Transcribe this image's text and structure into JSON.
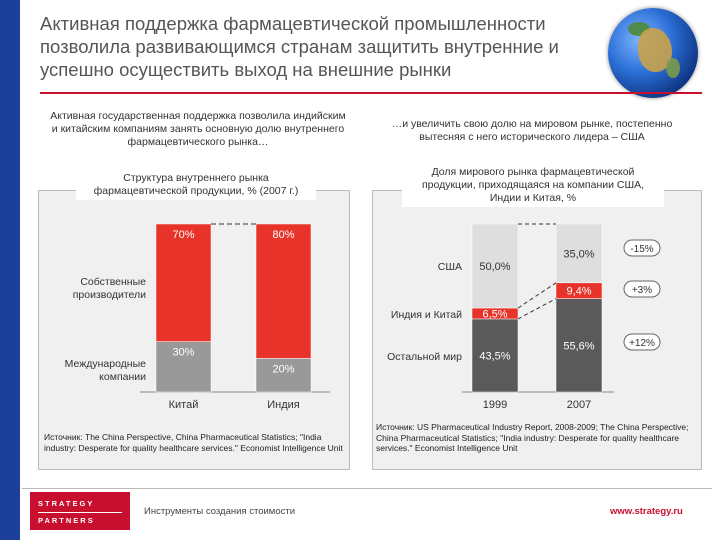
{
  "header": {
    "title": "Активная поддержка фармацевтической промышленности позволила развивающимся странам защитить внутренние и успешно осуществить выход на внешние рынки"
  },
  "left": {
    "subtitle": "Активная государственная поддержка позволила индийским и китайским компаниям занять основную долю внутреннего фармацевтического рынка…",
    "source": "Источник: The China Perspective, China Pharmaceutical Statistics; \"India industry: Desperate for quality healthcare services.\" Economist Intelligence Unit"
  },
  "right": {
    "subtitle": "…и увеличить свою долю на мировом рынке, постепенно вытесняя с него исторического лидера – США",
    "source": "Источник: US Pharmaceutical Industry Report, 2008-2009; The China Perspective; China Pharmaceutical Statistics; \"India industry: Desperate for quality healthcare services.\" Economist Intelligence Unit"
  },
  "chart_data": [
    {
      "type": "bar",
      "stacked": true,
      "title": "Структура внутреннего рынка фармацевтической продукции, % (2007 г.)",
      "categories": [
        "Китай",
        "Индия"
      ],
      "series": [
        {
          "name": "Международные компании",
          "values": [
            30,
            20
          ],
          "labels": [
            "30%",
            "20%"
          ],
          "color": "#999999"
        },
        {
          "name": "Собственные производители",
          "values": [
            70,
            80
          ],
          "labels": [
            "70%",
            "80%"
          ],
          "color": "#e8332a"
        }
      ],
      "ylim": [
        0,
        100
      ]
    },
    {
      "type": "bar",
      "stacked": true,
      "title": "Доля мирового рынка фармацевтической продукции, приходящаяся на компании США, Индии и Китая, %",
      "categories": [
        "1999",
        "2007"
      ],
      "series": [
        {
          "name": "Остальной мир",
          "values": [
            43.5,
            55.6
          ],
          "labels": [
            "43,5%",
            "55,6%"
          ],
          "color": "#5a5a5a"
        },
        {
          "name": "Индия и Китай",
          "values": [
            6.5,
            9.4
          ],
          "labels": [
            "6,5%",
            "9,4%"
          ],
          "color": "#e8332a"
        },
        {
          "name": "США",
          "values": [
            50.0,
            35.0
          ],
          "labels": [
            "50,0%",
            "35,0%"
          ],
          "color": "#dedede"
        }
      ],
      "changes": [
        "-15%",
        "+3%",
        "+12%"
      ],
      "ylim": [
        0,
        100
      ]
    }
  ],
  "footer": {
    "logo_line1": "STRATEGY",
    "logo_line2": "PARTNERS",
    "tagline": "Инструменты создания стоимости",
    "url": "www.strategy.ru"
  }
}
